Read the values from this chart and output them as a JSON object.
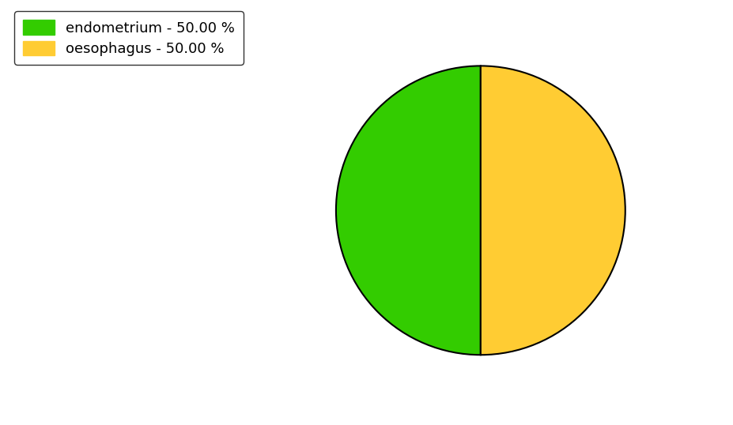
{
  "slices": [
    {
      "label": "endometrium - 50.00 %",
      "value": 50.0,
      "color": "#33cc00"
    },
    {
      "label": "oesophagus - 50.00 %",
      "value": 50.0,
      "color": "#ffcc33"
    }
  ],
  "figsize": [
    9.28,
    5.38
  ],
  "dpi": 100,
  "background_color": "#ffffff",
  "legend_fontsize": 13,
  "legend_loc": "upper left",
  "startangle": 90
}
